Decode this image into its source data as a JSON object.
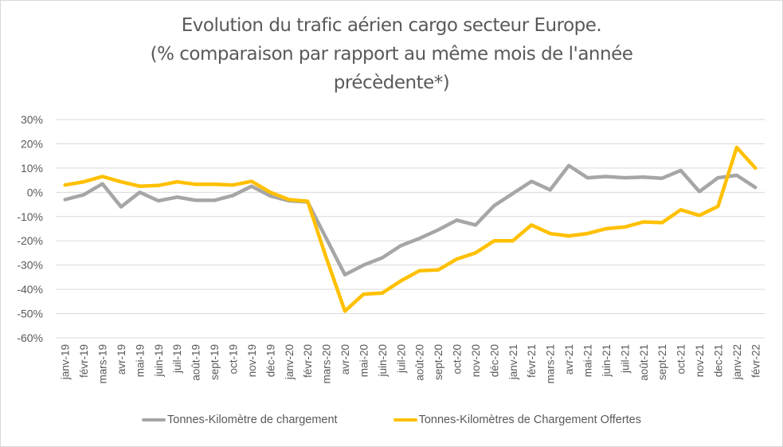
{
  "chart_data": {
    "type": "line",
    "title_lines": [
      "Evolution du trafic aérien cargo secteur Europe.",
      "(% comparaison par rapport au même mois de l'année",
      "précèdente*)"
    ],
    "xlabel": "",
    "ylabel": "",
    "ylim": [
      -60,
      30
    ],
    "y_ticks": [
      30,
      20,
      10,
      0,
      -10,
      -20,
      -30,
      -40,
      -50,
      -60
    ],
    "y_tick_labels": [
      "30%",
      "20%",
      "10%",
      "0%",
      "-10%",
      "-20%",
      "-30%",
      "-40%",
      "-50%",
      "-60%"
    ],
    "grid": true,
    "legend_position": "bottom",
    "categories": [
      "janv-19",
      "févr-19",
      "mars-19",
      "avr-19",
      "mai-19",
      "juin-19",
      "juil-19",
      "août-19",
      "sept-19",
      "oct-19",
      "nov-19",
      "déc-19",
      "janv-20",
      "févr-20",
      "mars-20",
      "avr-20",
      "mai-20",
      "juin-20",
      "juil-20",
      "août-20",
      "sept-20",
      "oct-20",
      "nov-20",
      "déc-20",
      "janv-21",
      "févr-21",
      "mars-21",
      "avr-21",
      "mai-21",
      "juin-21",
      "juil-21",
      "août-21",
      "sept-21",
      "oct-21",
      "nov-21",
      "dec-21",
      "janv-22",
      "févr-22"
    ],
    "series": [
      {
        "name": "Tonnes-Kilomètre de chargement",
        "color": "#a6a6a6",
        "values": [
          -3,
          -1,
          3.5,
          -6,
          0,
          -3.5,
          -2,
          -3.3,
          -3.3,
          -1.3,
          2.5,
          -1.5,
          -3.5,
          -4,
          -19,
          -34,
          -30,
          -27,
          -22,
          -19,
          -15.5,
          -11.5,
          -13.5,
          -5.5,
          -0.5,
          4.5,
          1,
          11,
          6,
          6.5,
          6,
          6.3,
          5.8,
          9,
          0.3,
          6,
          7,
          2
        ]
      },
      {
        "name": "Tonnes-Kilomètres de Chargement Offertes",
        "color": "#ffc000",
        "values": [
          3,
          4.3,
          6.5,
          4.3,
          2.5,
          2.8,
          4.3,
          3.3,
          3.3,
          3,
          4.5,
          0,
          -3,
          -3.7,
          -27,
          -49,
          -42,
          -41.5,
          -36.5,
          -32.3,
          -32,
          -27.5,
          -25,
          -20,
          -20,
          -13.5,
          -17,
          -18,
          -17,
          -15,
          -14.3,
          -12.2,
          -12.5,
          -7.2,
          -9.5,
          -5.8,
          18.5,
          10
        ]
      }
    ]
  }
}
